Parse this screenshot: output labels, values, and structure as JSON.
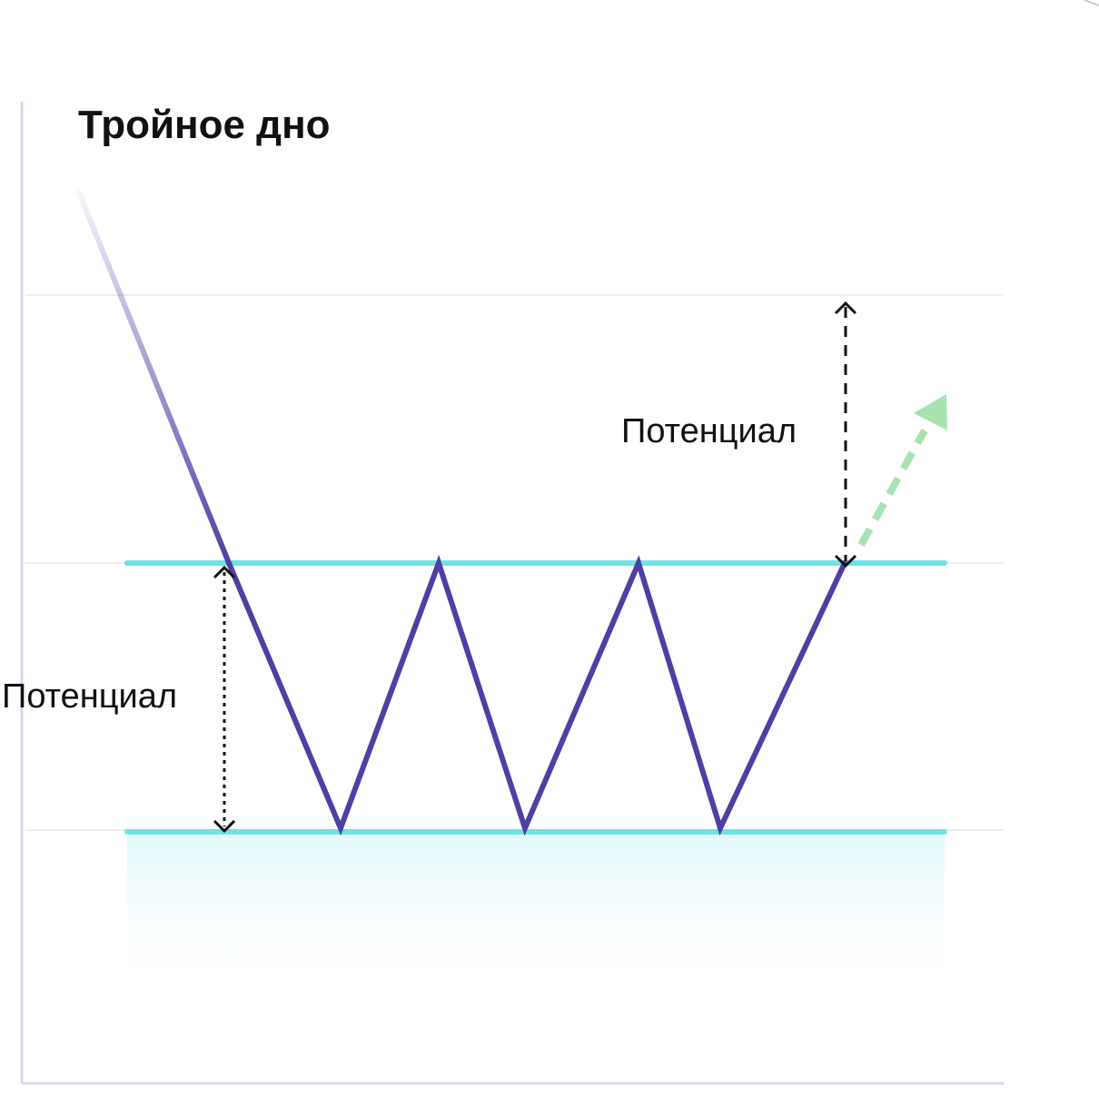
{
  "title": "Тройное дно",
  "labels": {
    "potential_top": "Потенциал",
    "potential_left": "Потенциал"
  },
  "colors": {
    "price_line": "#4e3fa3",
    "level_lines": "#6ee3e6",
    "breakout_arrow": "#a6e3b0",
    "axis": "#d9d6ee",
    "grid": "#eeeef4",
    "fill_zone": "#e6f9fb",
    "measure_arrows": "#111111"
  },
  "pattern": {
    "type": "triple-bottom",
    "elements": [
      "downtrend",
      "three-bottoms",
      "resistance-level",
      "support-level",
      "breakout-up"
    ]
  }
}
